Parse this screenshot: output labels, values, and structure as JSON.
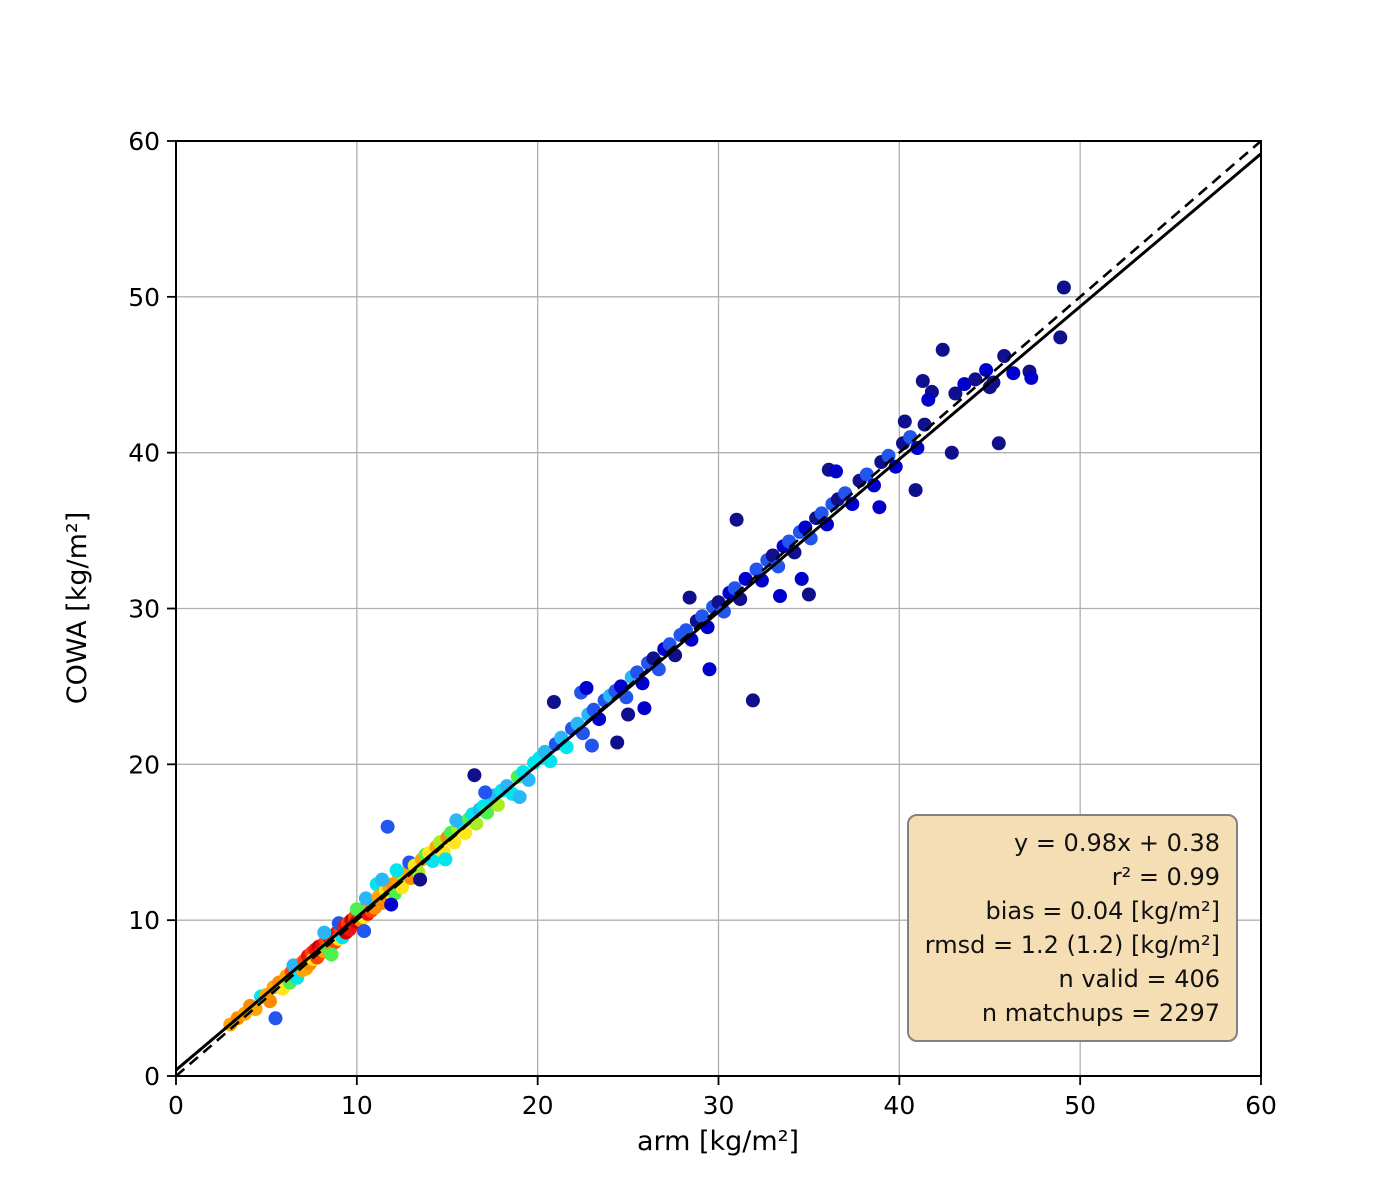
{
  "figure": {
    "background": "#ffffff"
  },
  "chart_data": {
    "type": "scatter",
    "title": "",
    "xlabel": "arm [kg/m²]",
    "ylabel": "COWA [kg/m²]",
    "xlim": [
      0,
      60
    ],
    "ylim": [
      0,
      60
    ],
    "xticks": [
      0,
      10,
      20,
      30,
      40,
      50,
      60
    ],
    "yticks": [
      0,
      10,
      20,
      30,
      40,
      50,
      60
    ],
    "grid": true,
    "grid_color": "#b0b0b0",
    "marker_radius": 7,
    "identity_line": {
      "style": "dashed",
      "color": "#000000",
      "from": [
        0,
        0
      ],
      "to": [
        60,
        60
      ]
    },
    "fit_line": {
      "slope": 0.98,
      "intercept": 0.38,
      "style": "solid",
      "color": "#000000"
    },
    "color_note": "points colored by matchup density, jet colormap (red = dense, navy = sparse)",
    "stats_box": {
      "background": "#f5deb3",
      "border": "#828282",
      "lines": [
        "y = 0.98x + 0.38",
        "r² = 0.99",
        "bias = 0.04 [kg/m²]",
        "rmsd = 1.2 (1.2) [kg/m²]",
        "n valid = 406",
        "n matchups = 2297"
      ]
    },
    "points": [
      [
        3.0,
        3.3,
        "#ffa500"
      ],
      [
        3.4,
        3.7,
        "#ff8c00"
      ],
      [
        3.8,
        4.0,
        "#ffa500"
      ],
      [
        4.1,
        4.5,
        "#ff8c00"
      ],
      [
        4.4,
        4.3,
        "#ffa500"
      ],
      [
        4.7,
        5.1,
        "#00e5ee"
      ],
      [
        5.0,
        5.2,
        "#ffa500"
      ],
      [
        5.2,
        4.8,
        "#ff8c00"
      ],
      [
        5.5,
        3.7,
        "#2255ee"
      ],
      [
        5.4,
        5.7,
        "#ffa500"
      ],
      [
        5.7,
        6.0,
        "#ff8c00"
      ],
      [
        5.9,
        5.6,
        "#ffe619"
      ],
      [
        6.1,
        6.4,
        "#ffa500"
      ],
      [
        6.3,
        6.0,
        "#4df04d"
      ],
      [
        6.4,
        6.7,
        "#ff4500"
      ],
      [
        6.6,
        6.9,
        "#ffa500"
      ],
      [
        6.7,
        6.3,
        "#00e5ee"
      ],
      [
        6.9,
        7.2,
        "#ff8c00"
      ],
      [
        7.0,
        6.8,
        "#ffa500"
      ],
      [
        6.5,
        7.1,
        "#29b7f7"
      ],
      [
        7.1,
        7.4,
        "#ff4500"
      ],
      [
        7.2,
        6.9,
        "#ffa500"
      ],
      [
        7.3,
        7.7,
        "#ee1111"
      ],
      [
        7.4,
        7.2,
        "#ff8c00"
      ],
      [
        7.5,
        7.9,
        "#ff4500"
      ],
      [
        7.6,
        7.5,
        "#ffe619"
      ],
      [
        7.7,
        8.1,
        "#ee1111"
      ],
      [
        7.8,
        7.6,
        "#ff4500"
      ],
      [
        7.9,
        8.3,
        "#c80000"
      ],
      [
        8.0,
        7.9,
        "#ff4500"
      ],
      [
        8.1,
        8.4,
        "#ee1111"
      ],
      [
        8.2,
        8.0,
        "#ffa500"
      ],
      [
        8.3,
        8.7,
        "#ff4500"
      ],
      [
        8.4,
        8.2,
        "#4df04d"
      ],
      [
        8.5,
        8.9,
        "#ee1111"
      ],
      [
        8.6,
        8.4,
        "#ff8c00"
      ],
      [
        8.7,
        9.0,
        "#c80000"
      ],
      [
        8.8,
        8.6,
        "#ff4500"
      ],
      [
        8.9,
        9.2,
        "#ee1111"
      ],
      [
        9.0,
        8.8,
        "#ffe619"
      ],
      [
        9.1,
        9.4,
        "#ff4500"
      ],
      [
        9.2,
        8.9,
        "#00e5ee"
      ],
      [
        8.2,
        9.2,
        "#29b7f7"
      ],
      [
        8.6,
        7.8,
        "#4df04d"
      ],
      [
        9.0,
        9.8,
        "#2255ee"
      ],
      [
        9.3,
        9.6,
        "#ee1111"
      ],
      [
        9.4,
        9.2,
        "#c80000"
      ],
      [
        9.5,
        9.8,
        "#ff4500"
      ],
      [
        9.6,
        9.4,
        "#ee1111"
      ],
      [
        9.7,
        10.0,
        "#c80000"
      ],
      [
        9.8,
        9.7,
        "#ee1111"
      ],
      [
        9.9,
        10.2,
        "#ff4500"
      ],
      [
        10.0,
        9.9,
        "#c80000"
      ],
      [
        10.1,
        10.4,
        "#ee1111"
      ],
      [
        10.2,
        10.0,
        "#ff8c00"
      ],
      [
        10.3,
        10.6,
        "#ee1111"
      ],
      [
        10.4,
        10.2,
        "#ffe619"
      ],
      [
        10.5,
        10.8,
        "#ff4500"
      ],
      [
        10.6,
        10.4,
        "#ee1111"
      ],
      [
        10.7,
        11.0,
        "#ffa500"
      ],
      [
        10.8,
        10.6,
        "#ff4500"
      ],
      [
        10.9,
        11.2,
        "#ffe619"
      ],
      [
        11.0,
        10.8,
        "#ff8c00"
      ],
      [
        10.0,
        10.7,
        "#4df04d"
      ],
      [
        10.5,
        11.4,
        "#29b7f7"
      ],
      [
        10.4,
        9.3,
        "#2255ee"
      ],
      [
        11.1,
        12.3,
        "#00e5ee"
      ],
      [
        11.2,
        11.5,
        "#ffa500"
      ],
      [
        11.4,
        11.1,
        "#ff8c00"
      ],
      [
        11.6,
        11.9,
        "#ffe619"
      ],
      [
        11.8,
        12.1,
        "#ffa500"
      ],
      [
        12.0,
        12.3,
        "#ff8c00"
      ],
      [
        12.1,
        11.7,
        "#4df04d"
      ],
      [
        12.3,
        12.6,
        "#ffa500"
      ],
      [
        12.5,
        12.1,
        "#ffe619"
      ],
      [
        12.6,
        12.9,
        "#aaee22"
      ],
      [
        12.8,
        13.1,
        "#ffa500"
      ],
      [
        13.0,
        12.7,
        "#ff8c00"
      ],
      [
        11.4,
        12.6,
        "#29b7f7"
      ],
      [
        12.2,
        13.2,
        "#00e5ee"
      ],
      [
        11.9,
        11.0,
        "#0000cd"
      ],
      [
        12.9,
        13.7,
        "#2255ee"
      ],
      [
        11.7,
        16.0,
        "#2255ee"
      ],
      [
        13.2,
        13.5,
        "#ffe619"
      ],
      [
        13.4,
        13.1,
        "#aaee22"
      ],
      [
        13.6,
        13.9,
        "#ffa500"
      ],
      [
        13.8,
        14.2,
        "#4df04d"
      ],
      [
        14.0,
        14.3,
        "#ffe619"
      ],
      [
        14.2,
        13.8,
        "#00e5ee"
      ],
      [
        14.4,
        14.7,
        "#ffa500"
      ],
      [
        14.6,
        15.0,
        "#aaee22"
      ],
      [
        14.8,
        14.4,
        "#ffe619"
      ],
      [
        15.0,
        15.3,
        "#ff8c00"
      ],
      [
        15.2,
        15.6,
        "#4df04d"
      ],
      [
        15.4,
        15.0,
        "#ffe619"
      ],
      [
        15.6,
        15.9,
        "#aaee22"
      ],
      [
        15.8,
        16.2,
        "#00e5ee"
      ],
      [
        16.0,
        15.6,
        "#ffe619"
      ],
      [
        13.5,
        12.6,
        "#10108c"
      ],
      [
        14.9,
        13.9,
        "#00e5ee"
      ],
      [
        15.5,
        16.4,
        "#29b7f7"
      ],
      [
        16.5,
        19.3,
        "#10108c"
      ],
      [
        16.2,
        16.5,
        "#4df04d"
      ],
      [
        16.4,
        16.8,
        "#00e5ee"
      ],
      [
        16.6,
        16.2,
        "#aaee22"
      ],
      [
        16.8,
        17.1,
        "#29b7f7"
      ],
      [
        17.0,
        17.3,
        "#00e5ee"
      ],
      [
        17.2,
        16.9,
        "#4df04d"
      ],
      [
        17.4,
        17.7,
        "#00e5ee"
      ],
      [
        17.6,
        18.0,
        "#29b7f7"
      ],
      [
        17.8,
        17.4,
        "#aaee22"
      ],
      [
        18.0,
        18.3,
        "#00e5ee"
      ],
      [
        18.3,
        18.6,
        "#29b7f7"
      ],
      [
        18.6,
        18.1,
        "#00e5ee"
      ],
      [
        18.9,
        19.2,
        "#4df04d"
      ],
      [
        19.2,
        19.5,
        "#00e5ee"
      ],
      [
        19.5,
        19.0,
        "#29b7f7"
      ],
      [
        19.8,
        20.1,
        "#00e5ee"
      ],
      [
        17.1,
        18.2,
        "#2255ee"
      ],
      [
        19.0,
        17.9,
        "#29b7f7"
      ],
      [
        20.1,
        20.4,
        "#00e5ee"
      ],
      [
        20.4,
        20.8,
        "#29b7f7"
      ],
      [
        20.7,
        20.2,
        "#00e5ee"
      ],
      [
        21.0,
        21.3,
        "#2255ee"
      ],
      [
        21.3,
        21.7,
        "#29b7f7"
      ],
      [
        21.6,
        21.1,
        "#00e5ee"
      ],
      [
        21.9,
        22.3,
        "#2255ee"
      ],
      [
        22.2,
        22.6,
        "#29b7f7"
      ],
      [
        22.5,
        22.0,
        "#2255ee"
      ],
      [
        22.8,
        23.2,
        "#29b7f7"
      ],
      [
        23.1,
        23.5,
        "#2255ee"
      ],
      [
        23.4,
        22.9,
        "#0000cd"
      ],
      [
        23.7,
        24.1,
        "#2255ee"
      ],
      [
        24.0,
        24.4,
        "#29b7f7"
      ],
      [
        20.9,
        24.0,
        "#10108c"
      ],
      [
        23.0,
        21.2,
        "#2255ee"
      ],
      [
        22.4,
        24.6,
        "#2255ee"
      ],
      [
        22.7,
        24.9,
        "#0000cd"
      ],
      [
        24.3,
        24.7,
        "#2255ee"
      ],
      [
        24.6,
        25.0,
        "#0000cd"
      ],
      [
        24.9,
        24.3,
        "#2255ee"
      ],
      [
        25.2,
        25.6,
        "#29b7f7"
      ],
      [
        25.5,
        25.9,
        "#2255ee"
      ],
      [
        25.8,
        25.2,
        "#0000cd"
      ],
      [
        26.1,
        26.5,
        "#2255ee"
      ],
      [
        26.4,
        26.8,
        "#10108c"
      ],
      [
        26.7,
        26.1,
        "#2255ee"
      ],
      [
        27.0,
        27.4,
        "#0000cd"
      ],
      [
        27.3,
        27.7,
        "#2255ee"
      ],
      [
        27.6,
        27.0,
        "#10108c"
      ],
      [
        27.9,
        28.3,
        "#2255ee"
      ],
      [
        25.0,
        23.2,
        "#10108c"
      ],
      [
        24.4,
        21.4,
        "#10108c"
      ],
      [
        25.9,
        23.6,
        "#0000cd"
      ],
      [
        28.2,
        28.6,
        "#2255ee"
      ],
      [
        28.5,
        28.0,
        "#0000cd"
      ],
      [
        28.8,
        29.2,
        "#10108c"
      ],
      [
        29.1,
        29.5,
        "#2255ee"
      ],
      [
        29.4,
        28.8,
        "#0000cd"
      ],
      [
        29.7,
        30.1,
        "#2255ee"
      ],
      [
        30.0,
        30.4,
        "#10108c"
      ],
      [
        30.3,
        29.8,
        "#2255ee"
      ],
      [
        30.6,
        31.0,
        "#0000cd"
      ],
      [
        30.9,
        31.3,
        "#2255ee"
      ],
      [
        31.2,
        30.6,
        "#10108c"
      ],
      [
        31.5,
        31.9,
        "#0000cd"
      ],
      [
        28.4,
        30.7,
        "#10108c"
      ],
      [
        31.0,
        35.7,
        "#10108c"
      ],
      [
        31.9,
        24.1,
        "#10108c"
      ],
      [
        29.5,
        26.1,
        "#0000cd"
      ],
      [
        32.1,
        32.5,
        "#2255ee"
      ],
      [
        32.4,
        31.8,
        "#0000cd"
      ],
      [
        32.7,
        33.1,
        "#2255ee"
      ],
      [
        33.0,
        33.4,
        "#10108c"
      ],
      [
        33.3,
        32.7,
        "#2255ee"
      ],
      [
        33.6,
        34.0,
        "#0000cd"
      ],
      [
        33.9,
        34.3,
        "#2255ee"
      ],
      [
        34.2,
        33.6,
        "#10108c"
      ],
      [
        34.5,
        34.9,
        "#2255ee"
      ],
      [
        34.8,
        35.2,
        "#0000cd"
      ],
      [
        35.1,
        34.5,
        "#2255ee"
      ],
      [
        35.4,
        35.8,
        "#10108c"
      ],
      [
        35.7,
        36.1,
        "#2255ee"
      ],
      [
        36.0,
        35.4,
        "#0000cd"
      ],
      [
        36.3,
        36.7,
        "#2255ee"
      ],
      [
        36.6,
        37.0,
        "#10108c"
      ],
      [
        34.6,
        31.9,
        "#0000cd"
      ],
      [
        35.0,
        30.9,
        "#10108c"
      ],
      [
        33.4,
        30.8,
        "#0000cd"
      ],
      [
        36.1,
        38.9,
        "#10108c"
      ],
      [
        36.5,
        38.8,
        "#0000cd"
      ],
      [
        37.0,
        37.4,
        "#2255ee"
      ],
      [
        37.4,
        36.7,
        "#0000cd"
      ],
      [
        37.8,
        38.2,
        "#10108c"
      ],
      [
        38.2,
        38.6,
        "#2255ee"
      ],
      [
        38.6,
        37.9,
        "#0000cd"
      ],
      [
        39.0,
        39.4,
        "#10108c"
      ],
      [
        39.4,
        39.8,
        "#2255ee"
      ],
      [
        39.8,
        39.1,
        "#0000cd"
      ],
      [
        40.2,
        40.6,
        "#10108c"
      ],
      [
        40.6,
        41.0,
        "#2255ee"
      ],
      [
        41.0,
        40.3,
        "#0000cd"
      ],
      [
        41.4,
        41.8,
        "#10108c"
      ],
      [
        38.9,
        36.5,
        "#0000cd"
      ],
      [
        40.9,
        37.6,
        "#10108c"
      ],
      [
        40.3,
        42.0,
        "#10108c"
      ],
      [
        41.8,
        43.9,
        "#10108c"
      ],
      [
        41.3,
        44.6,
        "#10108c"
      ],
      [
        41.6,
        43.4,
        "#0000cd"
      ],
      [
        42.4,
        46.6,
        "#10108c"
      ],
      [
        43.1,
        43.8,
        "#10108c"
      ],
      [
        43.6,
        44.4,
        "#0000cd"
      ],
      [
        42.9,
        40.0,
        "#10108c"
      ],
      [
        44.2,
        44.7,
        "#10108c"
      ],
      [
        44.8,
        45.3,
        "#0000cd"
      ],
      [
        45.2,
        44.5,
        "#10108c"
      ],
      [
        45.5,
        40.6,
        "#10108c"
      ],
      [
        45.8,
        46.2,
        "#10108c"
      ],
      [
        46.3,
        45.1,
        "#0000cd"
      ],
      [
        47.2,
        45.2,
        "#10108c"
      ],
      [
        47.3,
        44.8,
        "#0000cd"
      ],
      [
        48.9,
        47.4,
        "#10108c"
      ],
      [
        49.1,
        50.6,
        "#10108c"
      ],
      [
        45.0,
        44.2,
        "#10108c"
      ]
    ]
  }
}
